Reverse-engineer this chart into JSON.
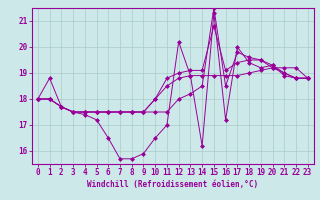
{
  "xlabel": "Windchill (Refroidissement éolien,°C)",
  "background_color": "#cce8e8",
  "line_color": "#990099",
  "grid_color": "#aacccc",
  "xlim": [
    -0.5,
    23.5
  ],
  "ylim": [
    15.5,
    21.5
  ],
  "yticks": [
    16,
    17,
    18,
    19,
    20,
    21
  ],
  "xticks": [
    0,
    1,
    2,
    3,
    4,
    5,
    6,
    7,
    8,
    9,
    10,
    11,
    12,
    13,
    14,
    15,
    16,
    17,
    18,
    19,
    20,
    21,
    22,
    23
  ],
  "series": [
    [
      18.0,
      18.8,
      17.7,
      17.5,
      17.4,
      17.2,
      16.5,
      15.7,
      15.7,
      15.9,
      16.5,
      17.0,
      20.2,
      18.9,
      16.2,
      21.3,
      17.2,
      20.0,
      19.4,
      19.2,
      19.3,
      18.9,
      18.8,
      18.8
    ],
    [
      18.0,
      18.0,
      17.7,
      17.5,
      17.5,
      17.5,
      17.5,
      17.5,
      17.5,
      17.5,
      18.0,
      18.5,
      18.8,
      18.9,
      18.9,
      18.9,
      18.9,
      18.9,
      19.0,
      19.1,
      19.2,
      19.2,
      19.2,
      18.8
    ],
    [
      18.0,
      18.0,
      17.7,
      17.5,
      17.5,
      17.5,
      17.5,
      17.5,
      17.5,
      17.5,
      18.0,
      18.8,
      19.0,
      19.1,
      19.1,
      20.8,
      19.1,
      19.4,
      19.5,
      19.5,
      19.3,
      19.0,
      18.8,
      18.8
    ],
    [
      18.0,
      18.0,
      17.7,
      17.5,
      17.5,
      17.5,
      17.5,
      17.5,
      17.5,
      17.5,
      17.5,
      17.5,
      18.0,
      18.2,
      18.5,
      21.5,
      18.5,
      19.8,
      19.6,
      19.5,
      19.2,
      19.0,
      18.8,
      18.8
    ]
  ]
}
